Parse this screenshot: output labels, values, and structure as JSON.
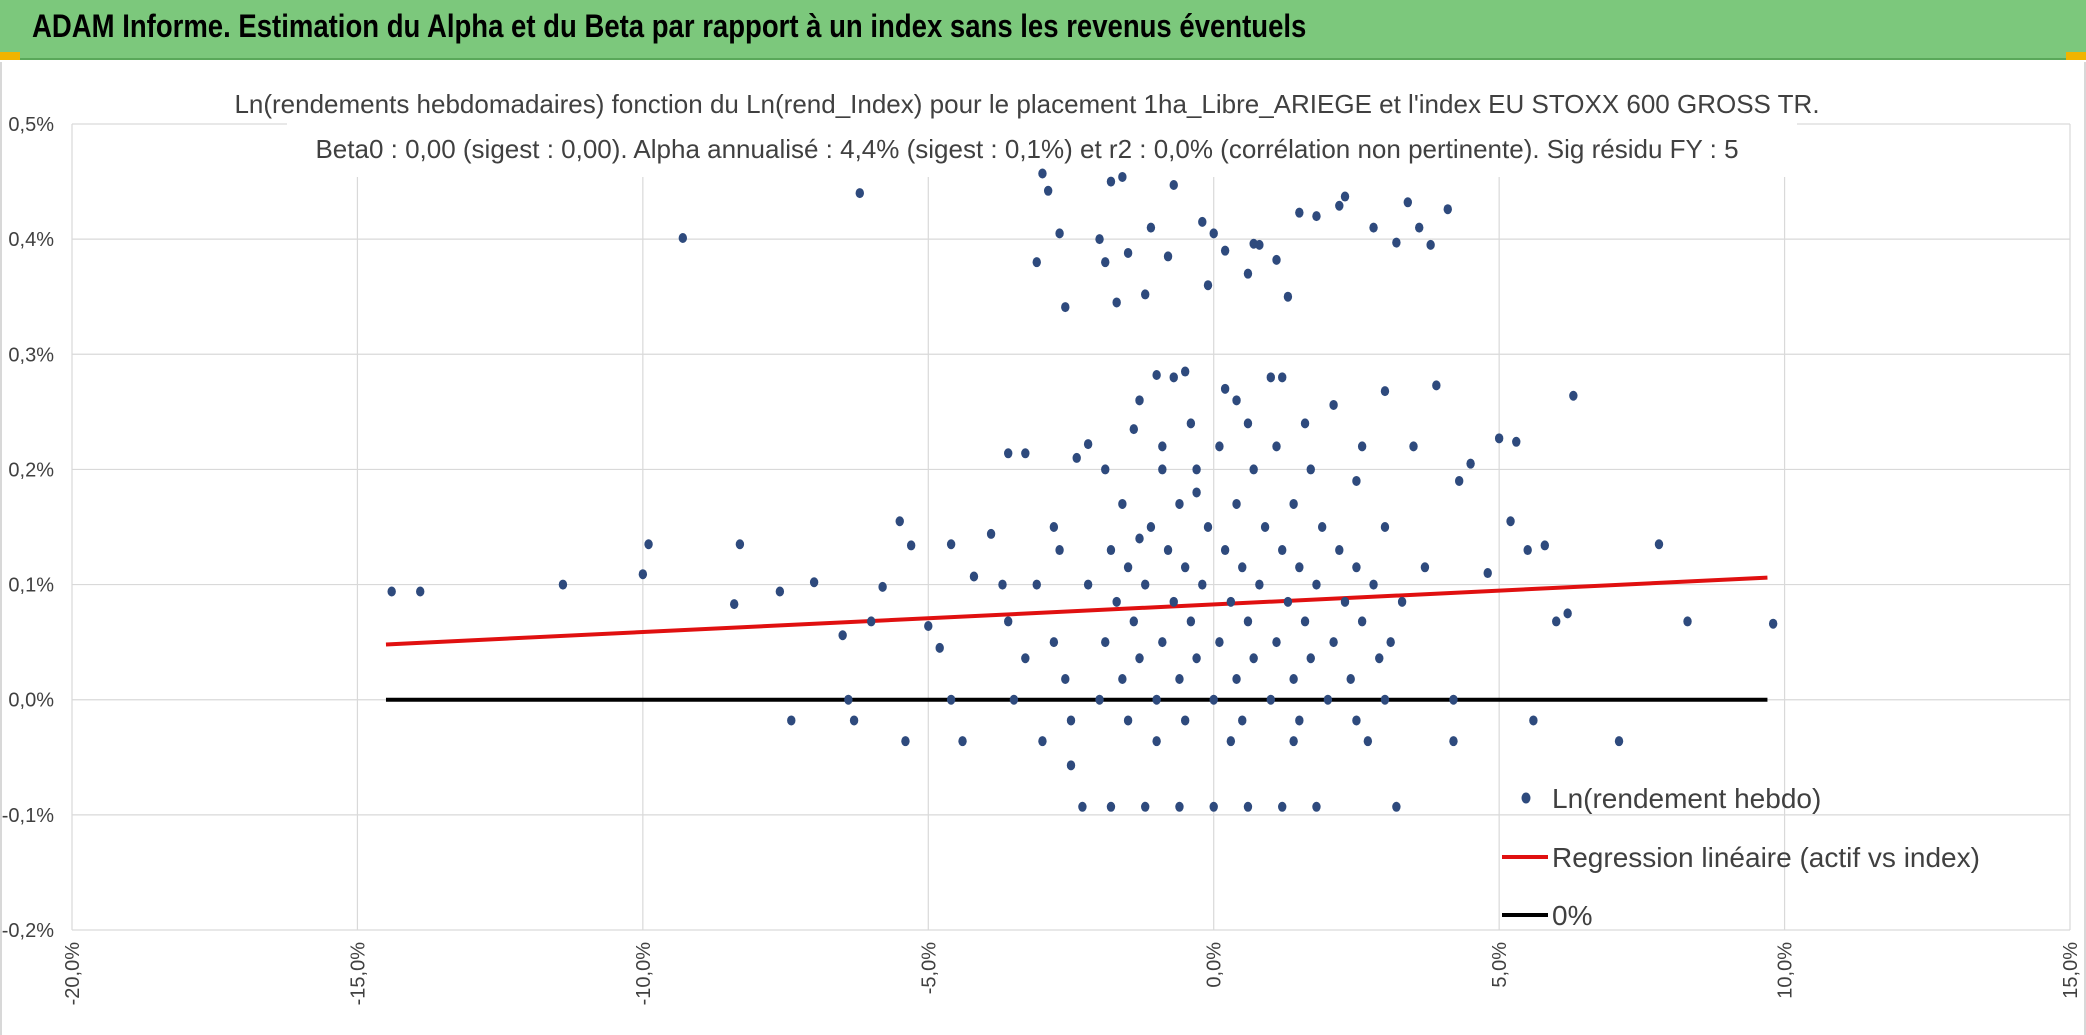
{
  "header": {
    "title": "ADAM Informe. Estimation du Alpha et du Beta par rapport à un index sans les revenus éventuels",
    "background_color": "#7cc87c"
  },
  "chart_data": {
    "type": "scatter",
    "title": "Ln(rendements hebdomadaires) fonction du Ln(rend_Index) pour le placement 1ha_Libre_ARIEGE et l'index EU STOXX 600 GROSS TR.",
    "subtitle": "Beta0 : 0,00 (sigest : 0,00). Alpha annualisé : 4,4% (sigest : 0,1%) et r2 : 0,0% (corrélation non pertinente). Sig résidu FY : 5",
    "xlabel": "",
    "ylabel": "",
    "xlim": [
      -20,
      15
    ],
    "ylim": [
      -0.2,
      0.5
    ],
    "x_ticks": [
      "-20,0%",
      "-15,0%",
      "-10,0%",
      "-5,0%",
      "0,0%",
      "5,0%",
      "10,0%",
      "15,0%"
    ],
    "y_ticks": [
      "-0,2%",
      "-0,1%",
      "0,0%",
      "0,1%",
      "0,2%",
      "0,3%",
      "0,4%",
      "0,5%"
    ],
    "grid": true,
    "legend_position": "bottom-right",
    "series": [
      {
        "name": "Ln(rendement hebdo)",
        "kind": "scatter",
        "color": "#2e4a7d",
        "points": [
          [
            -14.4,
            0.094
          ],
          [
            -13.9,
            0.094
          ],
          [
            -11.4,
            0.1
          ],
          [
            -10.0,
            0.109
          ],
          [
            -9.9,
            0.135
          ],
          [
            -9.3,
            0.401
          ],
          [
            -8.4,
            0.083
          ],
          [
            -8.3,
            0.135
          ],
          [
            -7.6,
            0.094
          ],
          [
            -7.4,
            -0.018
          ],
          [
            -7.0,
            0.102
          ],
          [
            -6.5,
            0.056
          ],
          [
            -6.4,
            0.0
          ],
          [
            -6.3,
            -0.018
          ],
          [
            -6.2,
            0.44
          ],
          [
            -6.0,
            0.068
          ],
          [
            -5.8,
            0.098
          ],
          [
            -5.5,
            0.155
          ],
          [
            -5.4,
            -0.036
          ],
          [
            -5.3,
            0.134
          ],
          [
            -5.0,
            0.064
          ],
          [
            -4.8,
            0.045
          ],
          [
            -4.6,
            0.135
          ],
          [
            -4.4,
            -0.036
          ],
          [
            -4.2,
            0.107
          ],
          [
            -3.9,
            0.144
          ],
          [
            -3.7,
            0.1
          ],
          [
            -3.6,
            0.214
          ],
          [
            -3.3,
            0.214
          ],
          [
            -3.1,
            0.38
          ],
          [
            -3.0,
            0.457
          ],
          [
            -2.9,
            0.442
          ],
          [
            -2.8,
            0.15
          ],
          [
            -2.7,
            0.405
          ],
          [
            -2.6,
            0.341
          ],
          [
            -2.5,
            -0.057
          ],
          [
            -2.4,
            0.21
          ],
          [
            -2.2,
            0.222
          ],
          [
            -2.0,
            0.4
          ],
          [
            -1.9,
            0.38
          ],
          [
            -1.8,
            0.45
          ],
          [
            -1.7,
            0.345
          ],
          [
            -1.6,
            0.454
          ],
          [
            -1.5,
            0.388
          ],
          [
            -1.4,
            0.235
          ],
          [
            -1.3,
            0.14
          ],
          [
            -1.2,
            0.352
          ],
          [
            -1.1,
            0.41
          ],
          [
            -1.0,
            0.282
          ],
          [
            -0.9,
            0.2
          ],
          [
            -0.8,
            0.385
          ],
          [
            -0.7,
            0.447
          ],
          [
            -0.5,
            0.285
          ],
          [
            -0.3,
            0.18
          ],
          [
            -0.2,
            0.415
          ],
          [
            -0.1,
            0.36
          ],
          [
            0.0,
            0.405
          ],
          [
            0.2,
            0.39
          ],
          [
            0.4,
            0.26
          ],
          [
            0.6,
            0.37
          ],
          [
            0.7,
            0.396
          ],
          [
            0.8,
            0.395
          ],
          [
            1.1,
            0.382
          ],
          [
            1.2,
            0.28
          ],
          [
            1.3,
            0.35
          ],
          [
            1.5,
            0.423
          ],
          [
            1.8,
            0.42
          ],
          [
            2.1,
            0.256
          ],
          [
            2.2,
            0.429
          ],
          [
            2.3,
            0.437
          ],
          [
            2.5,
            0.19
          ],
          [
            2.8,
            0.41
          ],
          [
            3.0,
            0.268
          ],
          [
            3.2,
            0.397
          ],
          [
            3.4,
            0.432
          ],
          [
            3.6,
            0.41
          ],
          [
            3.8,
            0.395
          ],
          [
            3.9,
            0.273
          ],
          [
            4.1,
            0.426
          ],
          [
            4.3,
            0.19
          ],
          [
            4.5,
            0.205
          ],
          [
            4.8,
            0.11
          ],
          [
            5.0,
            0.227
          ],
          [
            5.2,
            0.155
          ],
          [
            5.3,
            0.224
          ],
          [
            5.5,
            0.13
          ],
          [
            5.6,
            -0.018
          ],
          [
            5.8,
            0.134
          ],
          [
            6.0,
            0.068
          ],
          [
            6.2,
            0.075
          ],
          [
            6.3,
            0.264
          ],
          [
            7.1,
            -0.036
          ],
          [
            7.8,
            0.135
          ],
          [
            8.3,
            0.068
          ],
          [
            9.8,
            0.066
          ],
          [
            -2.3,
            -0.093
          ],
          [
            -1.8,
            -0.093
          ],
          [
            -1.2,
            -0.093
          ],
          [
            -0.6,
            -0.093
          ],
          [
            0.0,
            -0.093
          ],
          [
            0.6,
            -0.093
          ],
          [
            1.2,
            -0.093
          ],
          [
            1.8,
            -0.093
          ],
          [
            3.2,
            -0.093
          ],
          [
            -2.0,
            0.0
          ],
          [
            -1.0,
            0.0
          ],
          [
            0.0,
            0.0
          ],
          [
            1.0,
            0.0
          ],
          [
            2.0,
            0.0
          ],
          [
            3.0,
            0.0
          ],
          [
            4.2,
            0.0
          ],
          [
            -3.5,
            0.0
          ],
          [
            -4.6,
            0.0
          ],
          [
            -1.5,
            -0.018
          ],
          [
            -0.5,
            -0.018
          ],
          [
            0.5,
            -0.018
          ],
          [
            1.5,
            -0.018
          ],
          [
            2.5,
            -0.018
          ],
          [
            -2.5,
            -0.018
          ],
          [
            -3.0,
            -0.036
          ],
          [
            -1.0,
            -0.036
          ],
          [
            0.3,
            -0.036
          ],
          [
            1.4,
            -0.036
          ],
          [
            2.7,
            -0.036
          ],
          [
            4.2,
            -0.036
          ],
          [
            -1.6,
            0.018
          ],
          [
            -0.6,
            0.018
          ],
          [
            0.4,
            0.018
          ],
          [
            1.4,
            0.018
          ],
          [
            2.4,
            0.018
          ],
          [
            -2.6,
            0.018
          ],
          [
            -1.3,
            0.036
          ],
          [
            -0.3,
            0.036
          ],
          [
            0.7,
            0.036
          ],
          [
            1.7,
            0.036
          ],
          [
            2.9,
            0.036
          ],
          [
            -3.3,
            0.036
          ],
          [
            -1.9,
            0.05
          ],
          [
            -0.9,
            0.05
          ],
          [
            0.1,
            0.05
          ],
          [
            1.1,
            0.05
          ],
          [
            2.1,
            0.05
          ],
          [
            3.1,
            0.05
          ],
          [
            -2.8,
            0.05
          ],
          [
            -1.4,
            0.068
          ],
          [
            -0.4,
            0.068
          ],
          [
            0.6,
            0.068
          ],
          [
            1.6,
            0.068
          ],
          [
            2.6,
            0.068
          ],
          [
            -3.6,
            0.068
          ],
          [
            -1.7,
            0.085
          ],
          [
            -0.7,
            0.085
          ],
          [
            0.3,
            0.085
          ],
          [
            1.3,
            0.085
          ],
          [
            2.3,
            0.085
          ],
          [
            3.3,
            0.085
          ],
          [
            -2.2,
            0.1
          ],
          [
            -1.2,
            0.1
          ],
          [
            -0.2,
            0.1
          ],
          [
            0.8,
            0.1
          ],
          [
            1.8,
            0.1
          ],
          [
            2.8,
            0.1
          ],
          [
            -3.1,
            0.1
          ],
          [
            -1.5,
            0.115
          ],
          [
            -0.5,
            0.115
          ],
          [
            0.5,
            0.115
          ],
          [
            1.5,
            0.115
          ],
          [
            2.5,
            0.115
          ],
          [
            3.7,
            0.115
          ],
          [
            -1.8,
            0.13
          ],
          [
            -0.8,
            0.13
          ],
          [
            0.2,
            0.13
          ],
          [
            1.2,
            0.13
          ],
          [
            2.2,
            0.13
          ],
          [
            -2.7,
            0.13
          ],
          [
            -1.1,
            0.15
          ],
          [
            -0.1,
            0.15
          ],
          [
            0.9,
            0.15
          ],
          [
            1.9,
            0.15
          ],
          [
            3.0,
            0.15
          ],
          [
            -0.6,
            0.17
          ],
          [
            0.4,
            0.17
          ],
          [
            1.4,
            0.17
          ],
          [
            -1.6,
            0.17
          ],
          [
            -0.3,
            0.2
          ],
          [
            0.7,
            0.2
          ],
          [
            1.7,
            0.2
          ],
          [
            -1.9,
            0.2
          ],
          [
            -0.9,
            0.22
          ],
          [
            0.1,
            0.22
          ],
          [
            1.1,
            0.22
          ],
          [
            2.6,
            0.22
          ],
          [
            3.5,
            0.22
          ],
          [
            -0.4,
            0.24
          ],
          [
            0.6,
            0.24
          ],
          [
            1.6,
            0.24
          ],
          [
            -1.3,
            0.26
          ],
          [
            0.2,
            0.27
          ],
          [
            -0.7,
            0.28
          ],
          [
            1.0,
            0.28
          ]
        ]
      },
      {
        "name": "Regression linéaire (actif vs index)",
        "kind": "line",
        "color": "#e01010",
        "points": [
          [
            -14.5,
            0.048
          ],
          [
            9.7,
            0.106
          ]
        ]
      },
      {
        "name": "0%",
        "kind": "line",
        "color": "#000000",
        "points": [
          [
            -14.5,
            0.0
          ],
          [
            9.7,
            0.0
          ]
        ]
      }
    ]
  }
}
